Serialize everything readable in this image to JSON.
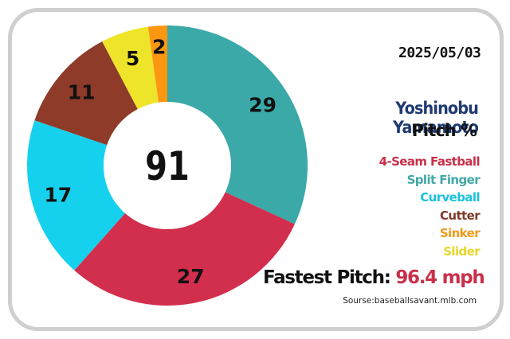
{
  "chart_data": {
    "type": "donut",
    "center_label": "91",
    "categories": [
      "4-Seam Fastball",
      "Split Finger",
      "Curveball",
      "Cutter",
      "Sinker",
      "Slider"
    ],
    "values": [
      27,
      29,
      17,
      11,
      2,
      5
    ],
    "title": "Yoshinobu Yamamoto",
    "subtitle": "Pitch %"
  },
  "slices": [
    {
      "label": "Split Finger",
      "value": 29,
      "color": "#3aa9a7"
    },
    {
      "label": "4-Seam Fastball",
      "value": 27,
      "color": "#d22e4d"
    },
    {
      "label": "Curveball",
      "value": 17,
      "color": "#16d1ed"
    },
    {
      "label": "Cutter",
      "value": 11,
      "color": "#8e3b29"
    },
    {
      "label": "Slider",
      "value": 5,
      "color": "#eee52a"
    },
    {
      "label": "Sinker",
      "value": 2,
      "color": "#fb9711"
    }
  ],
  "header": {
    "date": "2025/05/03"
  },
  "legend": {
    "items": [
      {
        "label": "4-Seam Fastball",
        "color": "#c8304a"
      },
      {
        "label": "Split Finger",
        "color": "#41a8a6"
      },
      {
        "label": "Curveball",
        "color": "#1ac3dd"
      },
      {
        "label": "Cutter",
        "color": "#7e3a2a"
      },
      {
        "label": "Sinker",
        "color": "#f19a1c"
      },
      {
        "label": "Slider",
        "color": "#e6d72a"
      }
    ]
  },
  "footer": {
    "fastest_label": "Fastest Pitch:",
    "fastest_value": "96.4 mph",
    "source": "Sourse:baseballsavant.mlb.com"
  }
}
